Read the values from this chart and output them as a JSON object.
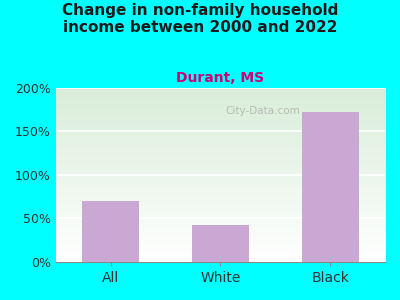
{
  "categories": [
    "All",
    "White",
    "Black"
  ],
  "values": [
    70,
    43,
    172
  ],
  "bar_color": "#C9A8D4",
  "title": "Change in non-family household\nincome between 2000 and 2022",
  "subtitle": "Durant, MS",
  "title_fontsize": 11,
  "subtitle_fontsize": 10,
  "ylim": [
    0,
    200
  ],
  "yticks": [
    0,
    50,
    100,
    150,
    200
  ],
  "ytick_labels": [
    "0%",
    "50%",
    "100%",
    "150%",
    "200%"
  ],
  "bg_color": "#00FFFF",
  "plot_bg_color": "#e8f5e2",
  "watermark": "City-Data.com",
  "title_color": "#1a1a1a",
  "subtitle_color": "#cc0077",
  "grid_color": "#d0e8d0"
}
